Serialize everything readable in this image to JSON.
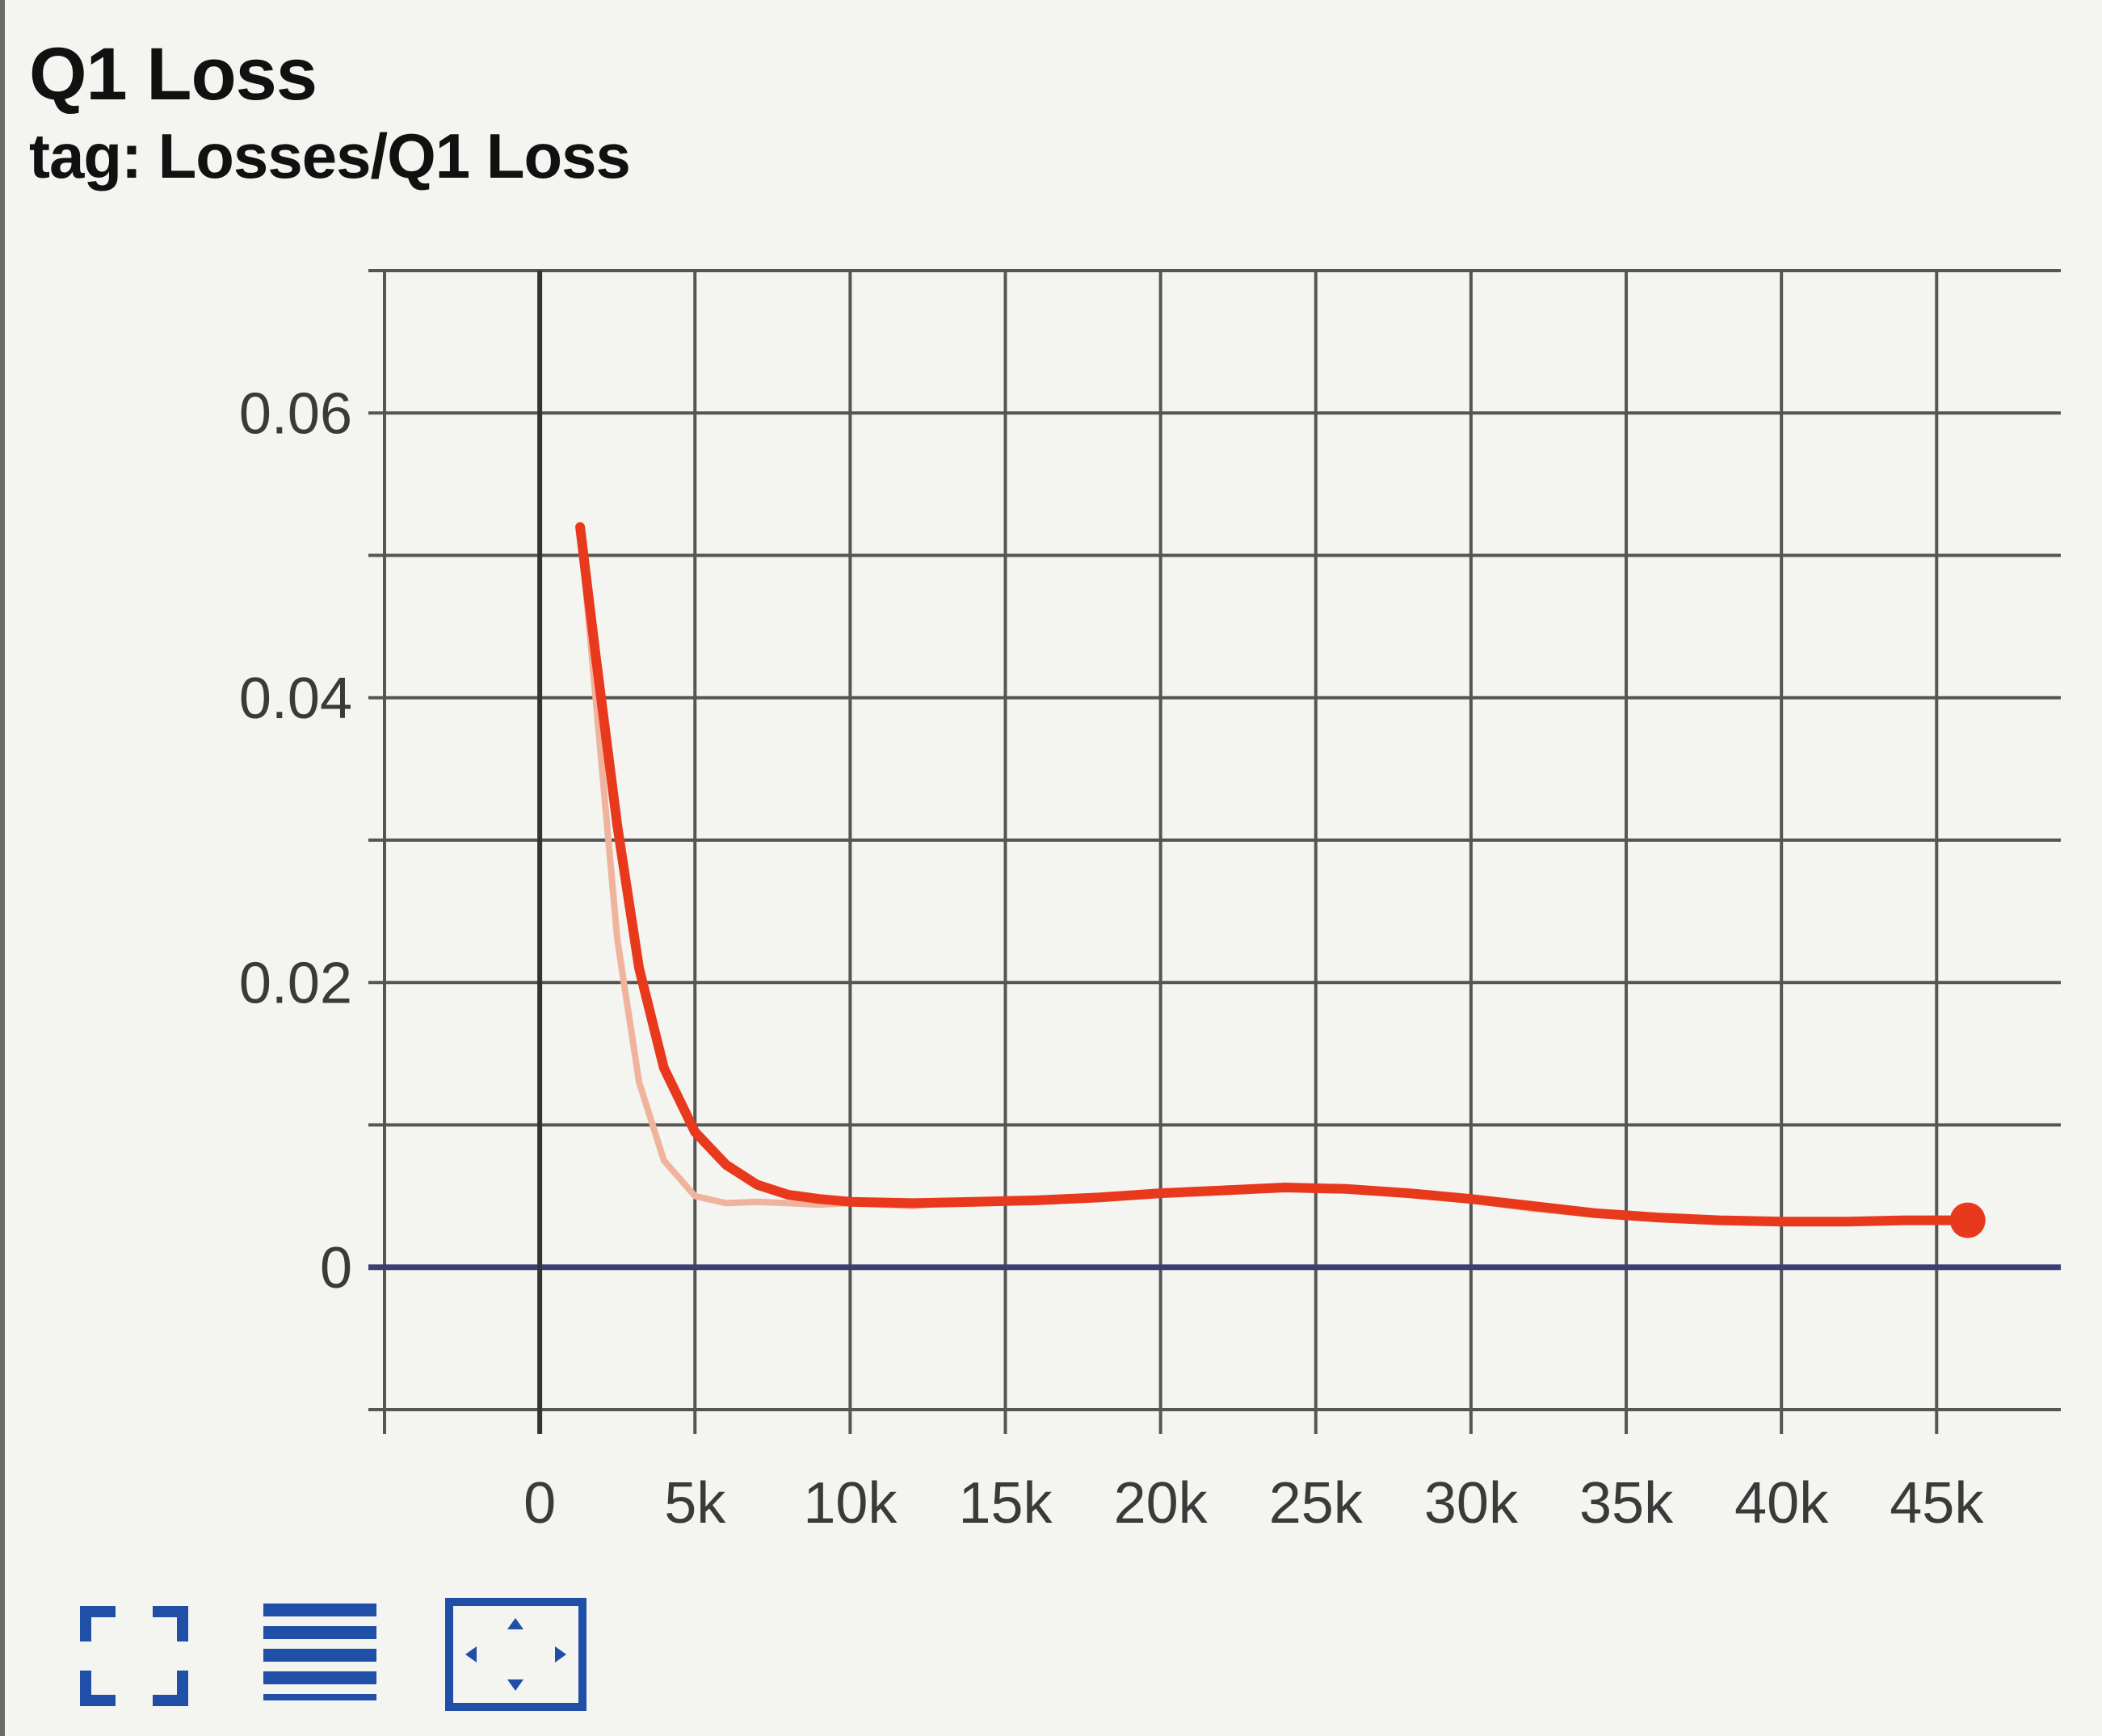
{
  "card": {
    "title": "Q1 Loss",
    "tag": "tag: Losses/Q1 Loss"
  },
  "colors": {
    "smoothed": "#e8391d",
    "raw": "#f0b49c",
    "zero_line": "#3b3f73",
    "grid": "#555555",
    "toolbar_icon": "#1f4fa6"
  },
  "toolbar": {
    "buttons": [
      {
        "name": "fullscreen-icon"
      },
      {
        "name": "toggle-log-scale-icon"
      },
      {
        "name": "fit-domain-icon"
      }
    ]
  },
  "chart_data": {
    "type": "line",
    "title": "Q1 Loss",
    "xlabel": "",
    "ylabel": "",
    "x_ticks": [
      "0",
      "5k",
      "10k",
      "15k",
      "20k",
      "25k",
      "30k",
      "35k",
      "40k",
      "45k"
    ],
    "y_ticks": [
      "0",
      "0.02",
      "0.04",
      "0.06"
    ],
    "xlim": [
      -5000,
      49000
    ],
    "ylim": [
      -0.01,
      0.07
    ],
    "grid": true,
    "series": [
      {
        "role": "raw",
        "x": [
          1300,
          1800,
          2500,
          3200,
          4000,
          5000,
          6000,
          7000,
          8000,
          9000,
          10000,
          12000,
          14000,
          16000,
          18000,
          20000,
          22000,
          24000,
          26000,
          28000,
          30000,
          32000,
          34000,
          36000,
          38000,
          40000,
          42000,
          44000,
          46000
        ],
        "y": [
          0.052,
          0.04,
          0.023,
          0.013,
          0.0075,
          0.005,
          0.0045,
          0.0046,
          0.0045,
          0.0044,
          0.0045,
          0.0043,
          0.0047,
          0.0046,
          0.005,
          0.0052,
          0.0054,
          0.0056,
          0.0054,
          0.0051,
          0.0047,
          0.0041,
          0.0037,
          0.0034,
          0.0032,
          0.0031,
          0.0031,
          0.0032,
          0.0033
        ]
      },
      {
        "role": "smoothed",
        "x": [
          1300,
          1800,
          2500,
          3200,
          4000,
          5000,
          6000,
          7000,
          8000,
          9000,
          10000,
          12000,
          14000,
          16000,
          18000,
          20000,
          22000,
          24000,
          26000,
          28000,
          30000,
          32000,
          34000,
          36000,
          38000,
          40000,
          42000,
          44000,
          46000
        ],
        "y": [
          0.052,
          0.043,
          0.031,
          0.021,
          0.014,
          0.0095,
          0.0072,
          0.0058,
          0.0051,
          0.0048,
          0.0046,
          0.0045,
          0.0046,
          0.0047,
          0.0049,
          0.0052,
          0.0054,
          0.0056,
          0.0055,
          0.0052,
          0.0048,
          0.0043,
          0.0038,
          0.0035,
          0.0033,
          0.0032,
          0.0032,
          0.0033,
          0.0033
        ]
      }
    ]
  }
}
